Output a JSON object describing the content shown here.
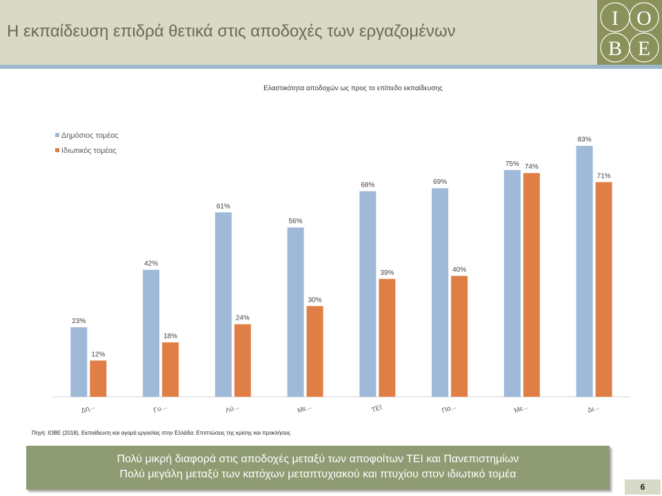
{
  "header": {
    "title": "Η εκπαίδευση επιδρά θετικά στις αποδοχές των εργαζομένων"
  },
  "logo": {
    "letters": [
      "I",
      "O",
      "B",
      "E"
    ]
  },
  "chart_data": {
    "type": "bar",
    "title": "Ελαστικότητα αποδοχών ως προς το επίπεδο εκπαίδευσης",
    "xlabel": "",
    "ylabel": "",
    "ylim": [
      0,
      90
    ],
    "grid": false,
    "legend": "top-left",
    "categories": [
      "Δη...",
      "Γυ...",
      "Λύ...",
      "Με...",
      "TEI",
      "Πα...",
      "Με...",
      "Δι..."
    ],
    "series": [
      {
        "name": "Δημόσιος τομέας",
        "color": "#9fb9d8",
        "values": [
          23,
          42,
          61,
          56,
          68,
          69,
          75,
          83
        ],
        "labels": [
          "23%",
          "42%",
          "61%",
          "56%",
          "68%",
          "69%",
          "75%",
          "83%"
        ]
      },
      {
        "name": "Ιδιωτικός τομέας",
        "color": "#e07f45",
        "values": [
          12,
          18,
          24,
          30,
          39,
          40,
          74,
          71
        ],
        "labels": [
          "12%",
          "18%",
          "24%",
          "30%",
          "39%",
          "40%",
          "74%",
          "71%"
        ]
      }
    ]
  },
  "source_note": "Πηγή: ΙΟΒΕ (2018), Εκπαίδευση και αγορά εργασίας στην Ελλάδα: Επιπτώσεις της κρίσης και προκλήσεις",
  "callout": {
    "line1": "Πολύ μικρή διαφορά στις αποδοχές μεταξύ των αποφοίτων ΤΕΙ και Πανεπιστημίων",
    "line2": "Πολύ μεγάλη μεταξύ των κατόχων μεταπτυχιακού  και πτυχίου  στον ιδιωτικό τομέα"
  },
  "page_number": "6"
}
